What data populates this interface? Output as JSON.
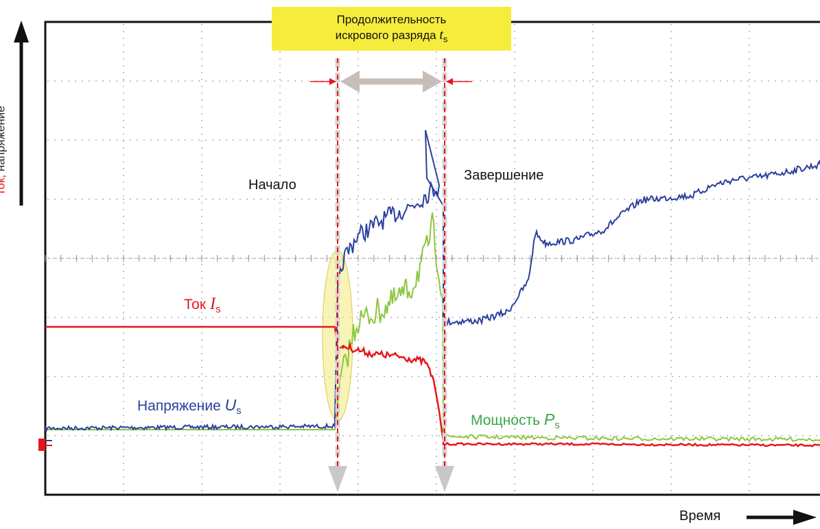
{
  "title": {
    "line1": "Продолжительность",
    "line2": "искрового разряда",
    "symbol": "t",
    "subscript": "s"
  },
  "y_axis": {
    "label_part1": "Ток,",
    "label_part2": " напряжение"
  },
  "x_axis": {
    "label": "Время"
  },
  "annotations": {
    "start": "Начало",
    "end": "Завершение"
  },
  "series_labels": {
    "current": {
      "text": "Ток ",
      "symbol": "I",
      "subscript": "s"
    },
    "voltage": {
      "text": "Напряжение ",
      "symbol": "U",
      "subscript": "s"
    },
    "power": {
      "text": "Мощность ",
      "symbol": "P",
      "subscript": "s"
    }
  },
  "colors": {
    "current": "#e8141c",
    "voltage": "#2b3f9e",
    "power": "#8cc63f",
    "highlight": "#f6ec3c",
    "marker": "#e8141c",
    "arrow": "#c8beb8"
  }
}
